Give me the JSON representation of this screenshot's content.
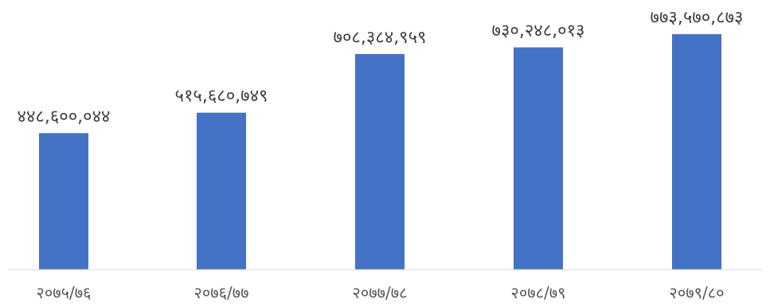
{
  "chart_data": {
    "type": "bar",
    "title": "",
    "xlabel": "",
    "ylabel": "",
    "categories": [
      "२०७५/७६",
      "२०७६/७७",
      "२०७७/७८",
      "२०७८/७९",
      "२०७९/८०"
    ],
    "values": [
      448600044,
      515680749,
      708384959,
      730248013,
      773570873
    ],
    "data_labels": [
      "४४८,६००,०४४",
      "५१५,६८०,७४९",
      "७०८,३८४,९५९",
      "७३०,२४८,०१३",
      "७७३,५७०,८७३"
    ],
    "ylim": [
      0,
      773570873
    ],
    "grid": false,
    "legend": "none",
    "bar_color": "#4472C4",
    "axis_color": "#D9D9D9"
  }
}
